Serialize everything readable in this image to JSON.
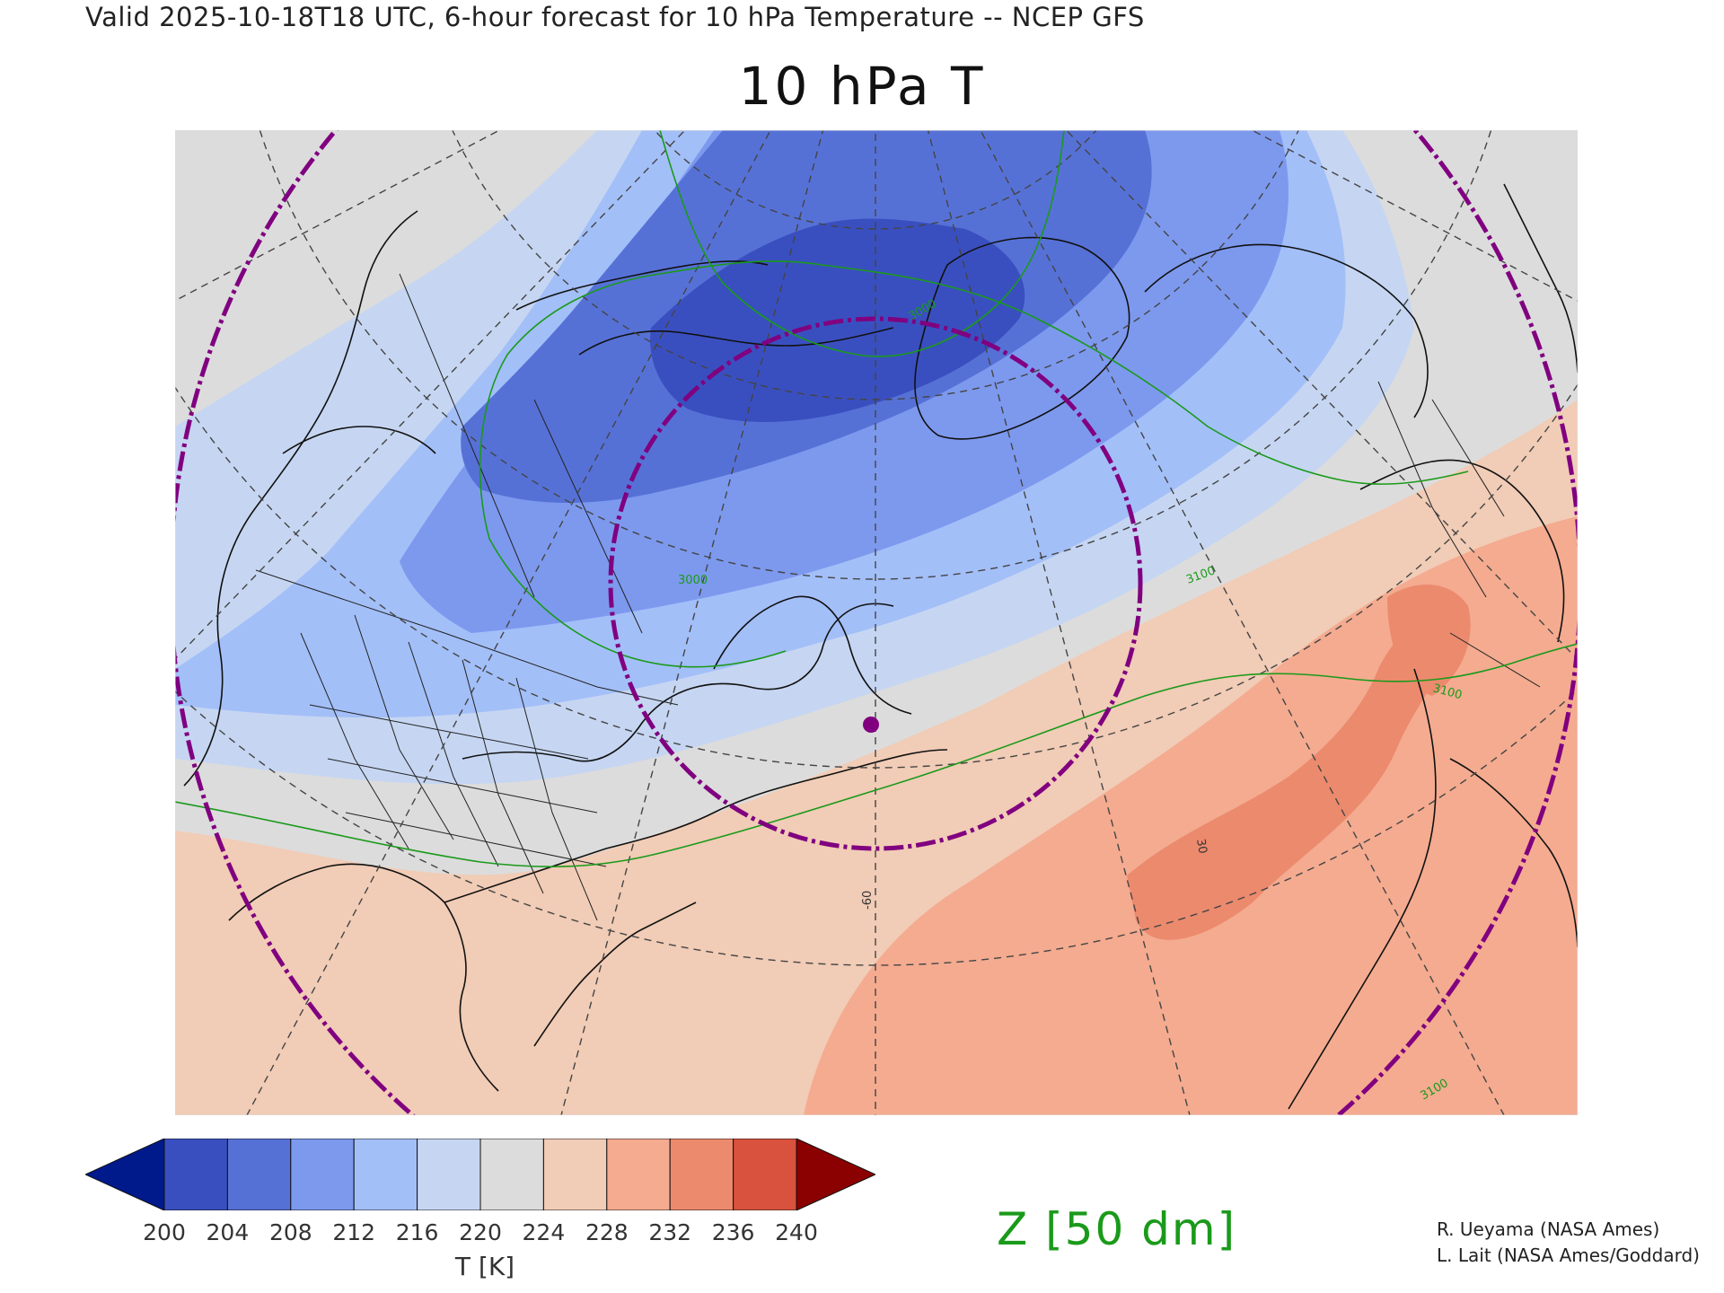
{
  "header": {
    "valid_text": "Valid 2025-10-18T18 UTC, 6-hour forecast for 10 hPa Temperature -- NCEP GFS",
    "title": "10 hPa T"
  },
  "colorbar": {
    "ticks": [
      "200",
      "204",
      "208",
      "212",
      "216",
      "220",
      "224",
      "228",
      "232",
      "236",
      "240"
    ],
    "label": "T [K]",
    "under_color": "#001a8c",
    "over_color": "#8b0000",
    "colors": [
      "#3a4fbf",
      "#5671d6",
      "#7d99ee",
      "#a3bff8",
      "#c6d6f2",
      "#dcdcdc",
      "#f1ccb6",
      "#f4ab90",
      "#ec8a6e",
      "#d9523e"
    ]
  },
  "map": {
    "contour_labels": [
      "3100",
      "3100",
      "3100",
      "3000",
      "3000"
    ],
    "latitude_labels": [
      "-60",
      "30"
    ],
    "contour_color": "#1a9a1a",
    "circle_color": "#800080"
  },
  "contour_legend": "Z [50 dm]",
  "credits": {
    "line1": "R. Ueyama (NASA Ames)",
    "line2": "L. Lait (NASA Ames/Goddard)"
  }
}
